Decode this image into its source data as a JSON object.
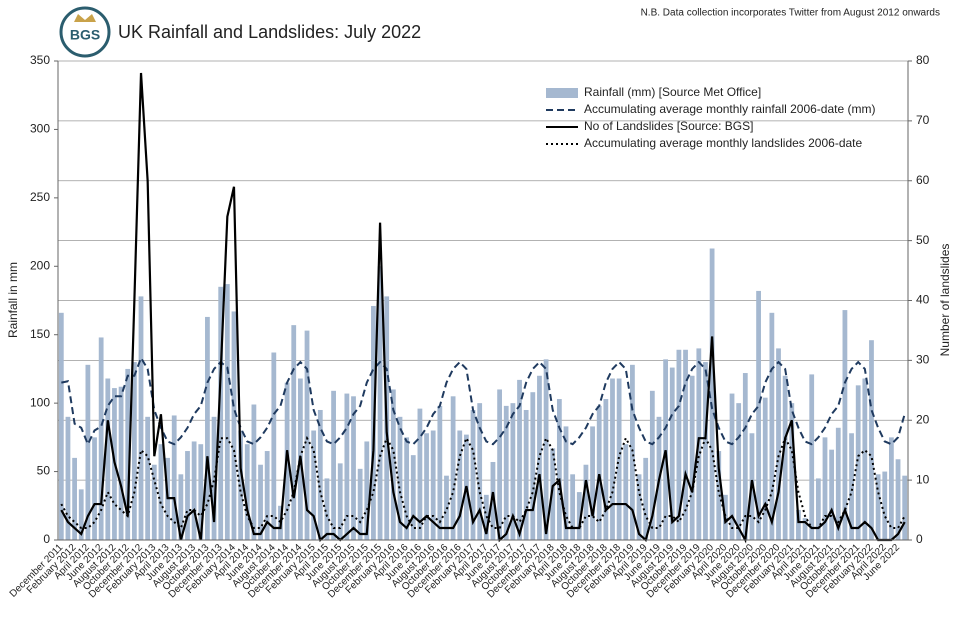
{
  "chart_data": {
    "type": "combo",
    "title": "UK Rainfall and Landslides: July 2022",
    "logo_text": "BGS",
    "note": "N.B. Data collection incorporates Twitter from August 2012 onwards",
    "y_label": "Rainfall in mm",
    "y2_label": "Number of landslides",
    "ylim": [
      0,
      350
    ],
    "yticks": [
      0,
      50,
      100,
      150,
      200,
      250,
      300,
      350
    ],
    "y2lim": [
      0,
      80
    ],
    "y2ticks": [
      0,
      10,
      20,
      30,
      40,
      50,
      60,
      70,
      80
    ],
    "grid": "y2",
    "legend": "top-right",
    "categories": [
      "December 2011",
      null,
      "February 2012",
      null,
      "April 2012",
      null,
      "June 2012",
      null,
      "August 2012",
      null,
      "October 2012",
      null,
      "December 2012",
      null,
      "February 2013",
      null,
      "April 2013",
      null,
      "June 2013",
      null,
      "August 2013",
      null,
      "October 2013",
      null,
      "December 2013",
      null,
      "February 2014",
      null,
      "April 2014",
      null,
      "June 2014",
      null,
      "August 2014",
      null,
      "October 2014",
      null,
      "December 2014",
      null,
      "February 2015",
      null,
      "April 2015",
      null,
      "June 2015",
      null,
      "August 2015",
      null,
      "October 2015",
      null,
      "December 2015",
      null,
      "February 2016",
      null,
      "April 2016",
      null,
      "June 2016",
      null,
      "August 2016",
      null,
      "October 2016",
      null,
      "December 2016",
      null,
      "February 2017",
      null,
      "April 2017",
      null,
      "June 2017",
      null,
      "August 2017",
      null,
      "October 2017",
      null,
      "December 2017",
      null,
      "February 2018",
      null,
      "April 2018",
      null,
      "June 2018",
      null,
      "August 2018",
      null,
      "October 2018",
      null,
      "December 2018",
      null,
      "February 2019",
      null,
      "April 2019",
      null,
      "June 2019",
      null,
      "August 2019",
      null,
      "October 2019",
      null,
      "December 2019",
      null,
      "February 2020",
      null,
      "April 2020",
      null,
      "June 2020",
      null,
      "August 2020",
      null,
      "October 2020",
      null,
      "December 2020",
      null,
      "February 2021",
      null,
      "April 2021",
      null,
      "June 2021",
      null,
      "August 2021",
      null,
      "October 2021",
      null,
      "December 2021",
      null,
      "February 2022",
      null,
      "April 2022",
      null,
      "June 2022",
      null
    ],
    "series": [
      {
        "name": "Rainfall (mm) [Source Met Office]",
        "type": "bar",
        "color": "#a5b8d0",
        "values": [
          166,
          90,
          60,
          37,
          128,
          75,
          148,
          118,
          111,
          112,
          125,
          130,
          178,
          90,
          55,
          70,
          60,
          91,
          48,
          65,
          72,
          70,
          163,
          90,
          185,
          187,
          167,
          80,
          70,
          99,
          55,
          65,
          137,
          25,
          115,
          157,
          118,
          153,
          80,
          95,
          45,
          109,
          56,
          107,
          105,
          52,
          72,
          171,
          200,
          178,
          110,
          90,
          75,
          62,
          96,
          78,
          80,
          98,
          47,
          105,
          80,
          77,
          95,
          100,
          33,
          57,
          110,
          98,
          100,
          117,
          95,
          108,
          120,
          132,
          67,
          103,
          83,
          48,
          35,
          55,
          83,
          98,
          103,
          118,
          118,
          70,
          128,
          48,
          60,
          109,
          90,
          132,
          126,
          139,
          139,
          120,
          140,
          130,
          213,
          65,
          33,
          107,
          100,
          122,
          78,
          182,
          104,
          166,
          140,
          120,
          100,
          22,
          16,
          121,
          45,
          75,
          66,
          82,
          168,
          78,
          113,
          118,
          146,
          48,
          50,
          75,
          59,
          47
        ]
      },
      {
        "name": "Accumulating average monthly rainfall 2006-date (mm)",
        "type": "line",
        "style": "dashed",
        "color": "#1f3a5f",
        "values": [
          115,
          116,
          85,
          82,
          70,
          80,
          83,
          98,
          105,
          105,
          120,
          120,
          133,
          125,
          95,
          82,
          72,
          70,
          75,
          82,
          92,
          98,
          115,
          125,
          130,
          126,
          96,
          82,
          72,
          70,
          75,
          82,
          92,
          98,
          115,
          125,
          130,
          125,
          95,
          82,
          72,
          70,
          75,
          82,
          92,
          98,
          115,
          125,
          130,
          125,
          95,
          82,
          72,
          70,
          75,
          82,
          92,
          98,
          115,
          125,
          130,
          125,
          95,
          82,
          72,
          70,
          75,
          82,
          92,
          98,
          115,
          125,
          130,
          125,
          95,
          82,
          72,
          70,
          75,
          82,
          92,
          98,
          115,
          125,
          130,
          125,
          95,
          82,
          72,
          70,
          75,
          82,
          92,
          98,
          115,
          125,
          130,
          125,
          96,
          82,
          72,
          70,
          75,
          82,
          92,
          98,
          115,
          125,
          130,
          125,
          95,
          82,
          72,
          70,
          75,
          82,
          92,
          98,
          115,
          125,
          130,
          125,
          95,
          82,
          72,
          70,
          75,
          92
        ]
      },
      {
        "name": "No of Landslides [Source: BGS]",
        "type": "line",
        "style": "solid",
        "color": "#000000",
        "axis": "y2",
        "values": [
          5,
          3,
          2,
          1,
          4,
          6,
          6,
          20,
          13,
          9,
          4,
          40,
          78,
          60,
          14,
          21,
          7,
          7,
          0,
          4,
          5,
          0,
          14,
          3,
          28,
          54,
          59,
          12,
          5,
          1,
          1,
          3,
          2,
          2,
          15,
          7,
          14,
          5,
          4,
          0,
          1,
          1,
          0,
          1,
          2,
          1,
          1,
          15,
          53,
          18,
          8,
          3,
          2,
          4,
          3,
          4,
          3,
          2,
          2,
          2,
          4,
          9,
          3,
          5,
          1,
          8,
          0,
          1,
          4,
          1,
          5,
          5,
          11,
          1,
          9,
          10,
          2,
          2,
          2,
          10,
          4,
          11,
          5,
          6,
          6,
          6,
          5,
          1,
          0,
          4,
          10,
          15,
          3,
          4,
          11,
          8,
          17,
          17,
          34,
          12,
          3,
          4,
          2,
          0,
          10,
          4,
          6,
          3,
          8,
          17,
          20,
          3,
          3,
          2,
          2,
          3,
          5,
          2,
          5,
          2,
          2,
          3,
          2,
          0,
          0,
          0,
          1,
          3
        ]
      },
      {
        "name": "Accumulating average monthly landslides 2006-date",
        "type": "line",
        "style": "dotted",
        "color": "#000000",
        "axis": "y2",
        "values": [
          6,
          4,
          3,
          2,
          2,
          3,
          5,
          8,
          6,
          5,
          4,
          8,
          15,
          14,
          10,
          6,
          4,
          3,
          2,
          5,
          5,
          4,
          6,
          10,
          17,
          17,
          15,
          8,
          4,
          2,
          2,
          4,
          4,
          3,
          5,
          8,
          14,
          17,
          15,
          8,
          4,
          2,
          2,
          4,
          4,
          3,
          5,
          8,
          14,
          17,
          15,
          8,
          4,
          2,
          2,
          4,
          4,
          3,
          5,
          8,
          14,
          17,
          15,
          8,
          4,
          2,
          2,
          4,
          4,
          3,
          5,
          8,
          14,
          17,
          15,
          8,
          4,
          2,
          2,
          4,
          4,
          3,
          5,
          8,
          14,
          17,
          15,
          8,
          4,
          2,
          2,
          4,
          4,
          3,
          5,
          8,
          14,
          17,
          15,
          8,
          4,
          2,
          2,
          4,
          4,
          3,
          5,
          8,
          14,
          17,
          15,
          8,
          4,
          2,
          2,
          4,
          4,
          3,
          5,
          8,
          14,
          15,
          14,
          8,
          4,
          2,
          2,
          4
        ]
      }
    ]
  }
}
